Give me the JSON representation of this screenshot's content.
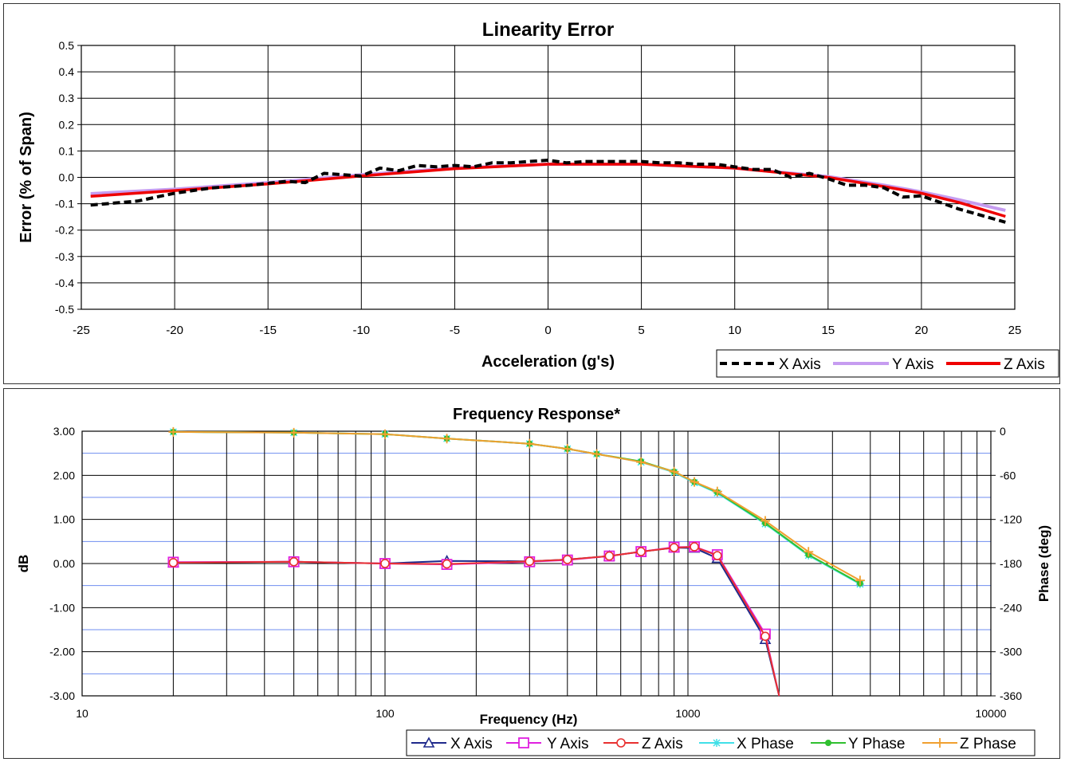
{
  "chart_data": [
    {
      "type": "line",
      "title": "Linearity Error",
      "xlabel": "Acceleration (g's)",
      "ylabel": "Error (% of Span)",
      "xlim": [
        -25,
        25
      ],
      "ylim": [
        -0.5,
        0.5
      ],
      "x_ticks": [
        "-25",
        "-20",
        "-15",
        "-10",
        "-5",
        "0",
        "5",
        "10",
        "15",
        "20",
        "25"
      ],
      "y_ticks": [
        "0.5",
        "0.4",
        "0.3",
        "0.2",
        "0.1",
        "0.0",
        "-0.1",
        "-0.2",
        "-0.3",
        "-0.4",
        "-0.5"
      ],
      "grid": true,
      "legend": "bottom-right",
      "series": [
        {
          "name": "X Axis",
          "color": "#000000",
          "style": "dashed",
          "x": [
            -24.5,
            -22,
            -20,
            -18,
            -16,
            -14,
            -13,
            -12,
            -11,
            -10,
            -9,
            -8,
            -7,
            -6,
            -5,
            -4,
            -3,
            -2,
            -1,
            0,
            1,
            2,
            3,
            4,
            5,
            6,
            7,
            8,
            9,
            10,
            11,
            12,
            13,
            14,
            15,
            16,
            17,
            18,
            19,
            20,
            21,
            22,
            23,
            24.5
          ],
          "values": [
            -0.105,
            -0.09,
            -0.06,
            -0.04,
            -0.03,
            -0.015,
            -0.02,
            0.015,
            0.01,
            0.005,
            0.035,
            0.025,
            0.045,
            0.04,
            0.045,
            0.04,
            0.055,
            0.055,
            0.06,
            0.065,
            0.055,
            0.06,
            0.06,
            0.06,
            0.06,
            0.055,
            0.055,
            0.05,
            0.05,
            0.04,
            0.03,
            0.03,
            0,
            0.015,
            -0.005,
            -0.03,
            -0.03,
            -0.04,
            -0.075,
            -0.07,
            -0.095,
            -0.12,
            -0.14,
            -0.17
          ]
        },
        {
          "name": "Y Axis",
          "color": "#c69cf0",
          "style": "solid",
          "x": [
            -24.5,
            -20,
            -15,
            -10,
            -5,
            0,
            5,
            10,
            15,
            18,
            20,
            22,
            24.5
          ],
          "values": [
            -0.062,
            -0.045,
            -0.02,
            0.01,
            0.035,
            0.05,
            0.05,
            0.035,
            0.003,
            -0.03,
            -0.055,
            -0.085,
            -0.125
          ]
        },
        {
          "name": "Z Axis",
          "color": "#ee0000",
          "style": "solid",
          "x": [
            -24.5,
            -20,
            -15,
            -10,
            -5,
            0,
            5,
            10,
            15,
            18,
            20,
            22,
            24.5
          ],
          "values": [
            -0.072,
            -0.05,
            -0.025,
            0.005,
            0.033,
            0.05,
            0.05,
            0.035,
            0.0,
            -0.035,
            -0.06,
            -0.095,
            -0.148
          ]
        }
      ]
    },
    {
      "type": "line",
      "title": "Frequency Response*",
      "xlabel": "Frequency (Hz)",
      "ylabel": "dB",
      "y2label": "Phase (deg)",
      "xscale": "log",
      "xlim": [
        10,
        10000
      ],
      "ylim": [
        -3,
        3
      ],
      "y2lim": [
        -360,
        0
      ],
      "x_ticks": [
        "10",
        "100",
        "1000",
        "10000"
      ],
      "y_ticks": [
        "3.00",
        "2.00",
        "1.00",
        "0.00",
        "-1.00",
        "-2.00",
        "-3.00"
      ],
      "y2_ticks": [
        "0",
        "-60",
        "-120",
        "-180",
        "-240",
        "-300",
        "-360"
      ],
      "grid": true,
      "legend": "bottom",
      "series": [
        {
          "name": "X Axis",
          "axis": "dB",
          "color": "#1f2a8c",
          "marker": "triangle",
          "x": [
            20,
            50,
            100,
            160,
            300,
            400,
            550,
            700,
            900,
            1050,
            1250,
            1800,
            2000
          ],
          "values": [
            0.02,
            0.04,
            0.0,
            0.06,
            0.05,
            0.09,
            0.17,
            0.27,
            0.36,
            0.35,
            0.12,
            -1.72,
            -3.0
          ]
        },
        {
          "name": "Y Axis",
          "axis": "dB",
          "color": "#e020e0",
          "marker": "square",
          "x": [
            20,
            50,
            100,
            160,
            300,
            400,
            550,
            700,
            900,
            1050,
            1250,
            1800,
            2000
          ],
          "values": [
            0.03,
            0.04,
            0.0,
            -0.02,
            0.04,
            0.08,
            0.17,
            0.27,
            0.37,
            0.38,
            0.2,
            -1.6,
            -3.0
          ]
        },
        {
          "name": "Z Axis",
          "axis": "dB",
          "color": "#e83030",
          "marker": "circle",
          "x": [
            20,
            50,
            100,
            160,
            300,
            400,
            550,
            700,
            900,
            1050,
            1250,
            1800,
            2000
          ],
          "values": [
            0.02,
            0.04,
            0.0,
            -0.01,
            0.05,
            0.09,
            0.17,
            0.27,
            0.36,
            0.38,
            0.18,
            -1.65,
            -3.0
          ]
        },
        {
          "name": "X Phase",
          "axis": "deg",
          "color": "#40e0e8",
          "marker": "star",
          "x": [
            20,
            50,
            100,
            160,
            300,
            400,
            500,
            700,
            900,
            1050,
            1250,
            1800,
            2500,
            3700
          ],
          "values": [
            -1,
            -2,
            -4,
            -10,
            -17,
            -24,
            -31,
            -42,
            -56,
            -70,
            -84,
            -126,
            -169,
            -208
          ]
        },
        {
          "name": "Y Phase",
          "axis": "deg",
          "color": "#30c030",
          "marker": "dot",
          "x": [
            20,
            50,
            100,
            160,
            300,
            400,
            500,
            700,
            900,
            1050,
            1250,
            1800,
            2500,
            3700
          ],
          "values": [
            -1,
            -2,
            -4,
            -10,
            -17,
            -24,
            -31,
            -41,
            -55,
            -69,
            -83,
            -125,
            -168,
            -207
          ]
        },
        {
          "name": "Z Phase",
          "axis": "deg",
          "color": "#f0a030",
          "marker": "plus",
          "x": [
            20,
            50,
            100,
            160,
            300,
            400,
            500,
            700,
            900,
            1050,
            1250,
            1800,
            2500,
            3700
          ],
          "values": [
            -1,
            -2,
            -4,
            -10,
            -17,
            -24,
            -31,
            -42,
            -55,
            -69,
            -82,
            -122,
            -164,
            -203
          ]
        }
      ]
    }
  ]
}
